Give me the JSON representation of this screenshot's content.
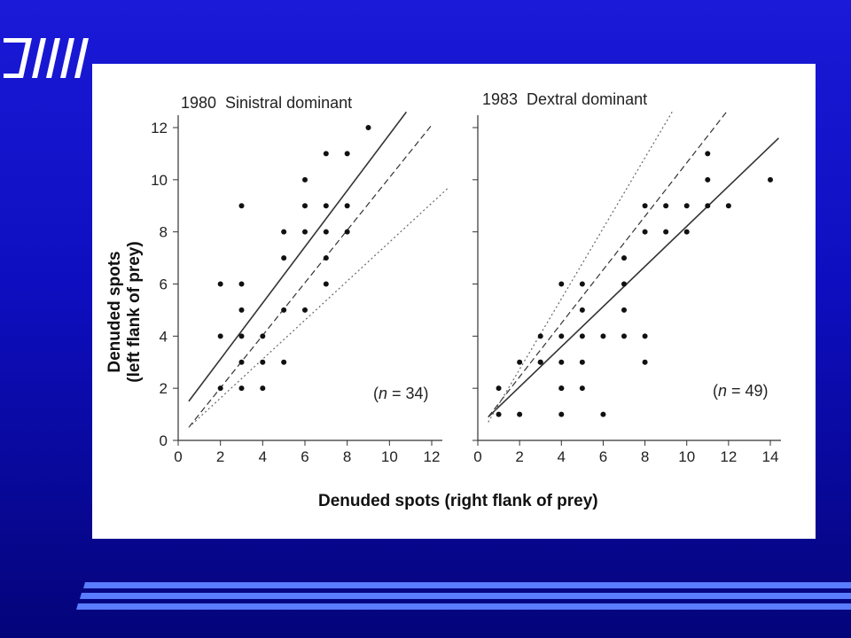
{
  "slide": {
    "background_top": "#1a1ad8",
    "background_bottom": "#04047a",
    "logo_icon": "slanted-bars-logo-icon",
    "decoration_icon": "horizontal-stripes-icon"
  },
  "figure": {
    "xlabel": "Denuded spots (right flank of prey)",
    "ylabel_line1": "Denuded spots",
    "ylabel_line2": "(left flank of prey)"
  },
  "chart_data": [
    {
      "type": "scatter",
      "title": "1980  Sinistral dominant",
      "n_prefix": "(",
      "n_var": "n",
      "n_suffix": " = 34)",
      "xlim": [
        0,
        12
      ],
      "ylim": [
        0,
        12
      ],
      "xticks": [
        0,
        2,
        4,
        6,
        8,
        10,
        12
      ],
      "yticks": [
        0,
        2,
        4,
        6,
        8,
        10,
        12
      ],
      "points": [
        [
          2,
          6
        ],
        [
          2,
          4
        ],
        [
          2,
          2
        ],
        [
          3,
          9
        ],
        [
          3,
          6
        ],
        [
          3,
          5
        ],
        [
          3,
          4
        ],
        [
          3,
          3
        ],
        [
          3,
          2
        ],
        [
          4,
          4
        ],
        [
          4,
          3
        ],
        [
          4,
          2
        ],
        [
          5,
          8
        ],
        [
          5,
          7
        ],
        [
          5,
          5
        ],
        [
          5,
          3
        ],
        [
          6,
          10
        ],
        [
          6,
          9
        ],
        [
          6,
          8
        ],
        [
          6,
          5
        ],
        [
          7,
          11
        ],
        [
          7,
          9
        ],
        [
          7,
          8
        ],
        [
          7,
          7
        ],
        [
          7,
          6
        ],
        [
          8,
          11
        ],
        [
          8,
          9
        ],
        [
          8,
          8
        ],
        [
          9,
          12
        ]
      ],
      "lines": [
        {
          "style": "solid",
          "from": [
            0.5,
            1.5
          ],
          "to": [
            10.8,
            12.6
          ]
        },
        {
          "style": "dashed",
          "from": [
            0.5,
            0.5
          ],
          "to": [
            12,
            12.1
          ]
        },
        {
          "style": "dotted",
          "from": [
            0.5,
            0.5
          ],
          "to": [
            12.8,
            9.7
          ]
        }
      ]
    },
    {
      "type": "scatter",
      "title": "1983  Dextral dominant",
      "n_prefix": "(",
      "n_var": "n",
      "n_suffix": " = 49)",
      "xlim": [
        0,
        14
      ],
      "ylim": [
        0,
        12
      ],
      "xticks": [
        0,
        2,
        4,
        6,
        8,
        10,
        12,
        14
      ],
      "yticks": [
        0,
        2,
        4,
        6,
        8,
        10,
        12
      ],
      "points": [
        [
          1,
          2
        ],
        [
          1,
          1
        ],
        [
          2,
          3
        ],
        [
          2,
          1
        ],
        [
          3,
          4
        ],
        [
          3,
          3
        ],
        [
          3,
          3
        ],
        [
          4,
          6
        ],
        [
          4,
          4
        ],
        [
          4,
          3
        ],
        [
          4,
          2
        ],
        [
          4,
          2
        ],
        [
          4,
          1
        ],
        [
          5,
          6
        ],
        [
          5,
          5
        ],
        [
          5,
          4
        ],
        [
          5,
          3
        ],
        [
          5,
          2
        ],
        [
          6,
          4
        ],
        [
          6,
          1
        ],
        [
          7,
          7
        ],
        [
          7,
          6
        ],
        [
          7,
          5
        ],
        [
          7,
          4
        ],
        [
          8,
          9
        ],
        [
          8,
          8
        ],
        [
          8,
          4
        ],
        [
          8,
          3
        ],
        [
          9,
          9
        ],
        [
          9,
          8
        ],
        [
          10,
          9
        ],
        [
          10,
          8
        ],
        [
          11,
          11
        ],
        [
          11,
          10
        ],
        [
          11,
          9
        ],
        [
          12,
          9
        ],
        [
          14,
          10
        ]
      ],
      "lines": [
        {
          "style": "solid",
          "from": [
            0.5,
            0.9
          ],
          "to": [
            14.4,
            11.6
          ]
        },
        {
          "style": "dashed",
          "from": [
            0.5,
            0.9
          ],
          "to": [
            11.9,
            12.6
          ]
        },
        {
          "style": "dotted",
          "from": [
            0.5,
            0.7
          ],
          "to": [
            9.3,
            12.6
          ]
        }
      ]
    }
  ]
}
